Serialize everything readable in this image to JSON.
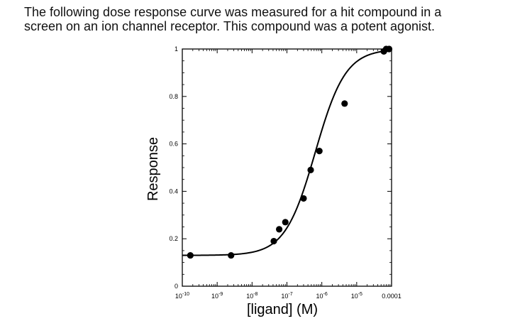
{
  "caption": {
    "line1": "The following dose response curve was measured for a hit compound in a",
    "line2": "screen on an ion channel receptor. This compound was a potent agonist."
  },
  "chart_data": {
    "type": "scatter",
    "title": "",
    "xlabel": "[ligand] (M)",
    "ylabel": "Response",
    "x_scale": "log",
    "xlim": [
      1e-10,
      0.0001
    ],
    "ylim": [
      0,
      1
    ],
    "x_ticks": [
      {
        "value": 1e-10,
        "base": "10",
        "exp": "-10"
      },
      {
        "value": 1e-09,
        "base": "10",
        "exp": "-9"
      },
      {
        "value": 1e-08,
        "base": "10",
        "exp": "-8"
      },
      {
        "value": 1e-07,
        "base": "10",
        "exp": "-7"
      },
      {
        "value": 1e-06,
        "base": "10",
        "exp": "-6"
      },
      {
        "value": 1e-05,
        "base": "10",
        "exp": "-5"
      },
      {
        "value": 0.0001,
        "base": "0.0001",
        "exp": ""
      }
    ],
    "y_ticks": [
      {
        "value": 0,
        "label": "0"
      },
      {
        "value": 0.2,
        "label": "0.2"
      },
      {
        "value": 0.4,
        "label": "0.4"
      },
      {
        "value": 0.6,
        "label": "0.6"
      },
      {
        "value": 0.8,
        "label": "0.8"
      },
      {
        "value": 1,
        "label": "1"
      }
    ],
    "points": [
      {
        "x": 1.7e-10,
        "y": 0.13
      },
      {
        "x": 2.5e-09,
        "y": 0.13
      },
      {
        "x": 4.2e-08,
        "y": 0.19
      },
      {
        "x": 6e-08,
        "y": 0.24
      },
      {
        "x": 9e-08,
        "y": 0.27
      },
      {
        "x": 3e-07,
        "y": 0.37
      },
      {
        "x": 4.8e-07,
        "y": 0.49
      },
      {
        "x": 8.5e-07,
        "y": 0.57
      },
      {
        "x": 4.5e-06,
        "y": 0.77
      },
      {
        "x": 6e-05,
        "y": 0.99
      },
      {
        "x": 7e-05,
        "y": 1.0
      },
      {
        "x": 8.5e-05,
        "y": 1.0
      }
    ],
    "fit": {
      "bottom": 0.13,
      "top": 1.0,
      "ec50": 6.5e-07,
      "hill": 1.0
    },
    "grid": false,
    "legend": "none"
  }
}
